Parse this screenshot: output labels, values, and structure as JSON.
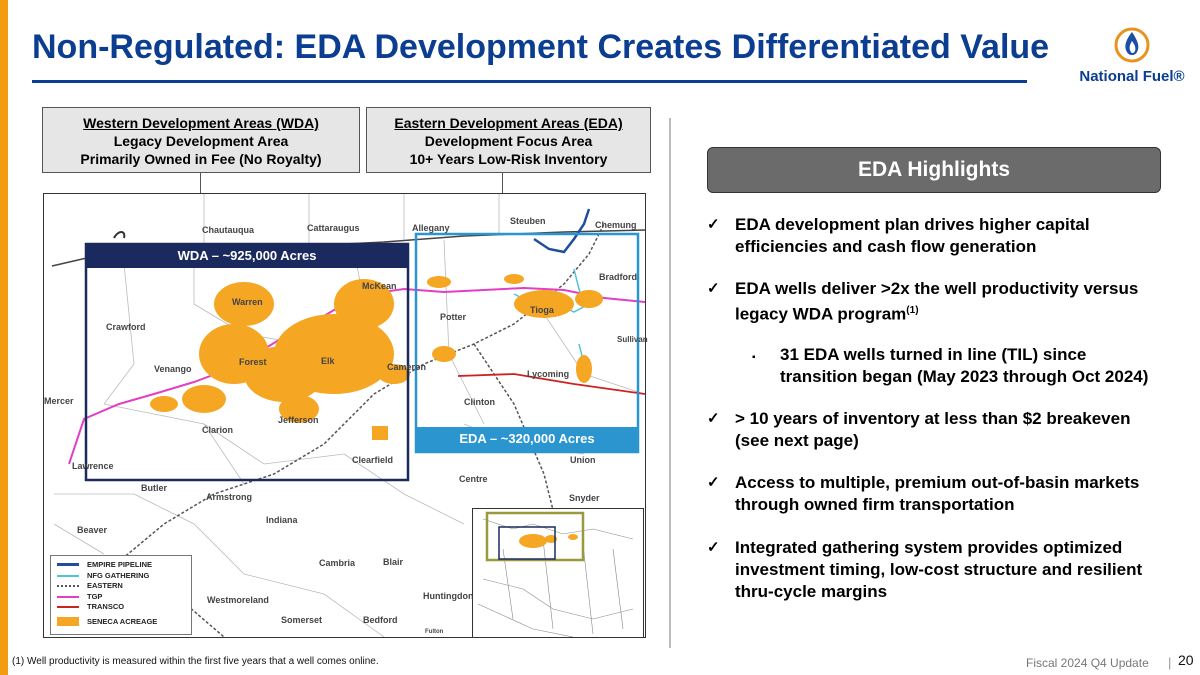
{
  "title": "Non-Regulated: EDA Development Creates Differentiated Value",
  "logo": {
    "name": "National Fuel®",
    "icon": "flame-icon"
  },
  "wda_box": {
    "heading": "Western Development Areas (WDA)",
    "line1": "Legacy Development Area",
    "line2": "Primarily Owned in Fee (No Royalty)"
  },
  "eda_box": {
    "heading": "Eastern Development Areas (EDA)",
    "line1": "Development Focus Area",
    "line2": "10+ Years Low-Risk Inventory"
  },
  "map": {
    "wda_label": "WDA – ~925,000 Acres",
    "eda_label": "EDA – ~320,000 Acres",
    "counties": [
      "Chautauqua",
      "Cattaraugus",
      "Allegany",
      "Steuben",
      "Chemung",
      "McKean",
      "Bradford",
      "Warren",
      "Crawford",
      "Potter",
      "Tioga",
      "Sullivan",
      "Venango",
      "Forest",
      "Elk",
      "Cameron",
      "Lycoming",
      "Mercer",
      "Clinton",
      "Clarion",
      "Jefferson",
      "Lawrence",
      "Clearfield",
      "Union",
      "Butler",
      "Centre",
      "Armstrong",
      "Snyder",
      "Indiana",
      "Beaver",
      "Cambria",
      "Blair",
      "Westmoreland",
      "Huntingdon",
      "Somerset",
      "Bedford",
      "Fulton"
    ],
    "legend": [
      "EMPIRE PIPELINE",
      "NFG GATHERING",
      "EASTERN",
      "TGP",
      "TRANSCO",
      "SENECA ACREAGE"
    ],
    "colors": {
      "empire": "#1f4e9c",
      "nfg_gathering": "#4fc3d9",
      "eastern": "#555555",
      "tgp": "#e23fc4",
      "transco": "#cc2222",
      "acreage": "#f5a623"
    }
  },
  "highlights": {
    "header": "EDA Highlights",
    "bullets": [
      "EDA development plan drives higher capital efficiencies and cash flow generation",
      "EDA wells deliver >2x the well productivity versus legacy WDA program",
      "31 EDA wells turned in line (TIL) since transition began (May 2023 through Oct 2024)",
      "> 10 years of inventory at less than $2 breakeven (see next page)",
      "Access to multiple, premium out-of-basin markets through owned firm transportation",
      "Integrated gathering system provides optimized investment timing, low-cost structure and resilient thru-cycle margins"
    ],
    "superscript": "(1)",
    "check": "✓",
    "sub_marker": "▪"
  },
  "footnote": "(1)    Well productivity is measured within the first five years that a well comes online.",
  "footer": {
    "text": "Fiscal 2024 Q4 Update",
    "separator": "|",
    "page": "20"
  }
}
